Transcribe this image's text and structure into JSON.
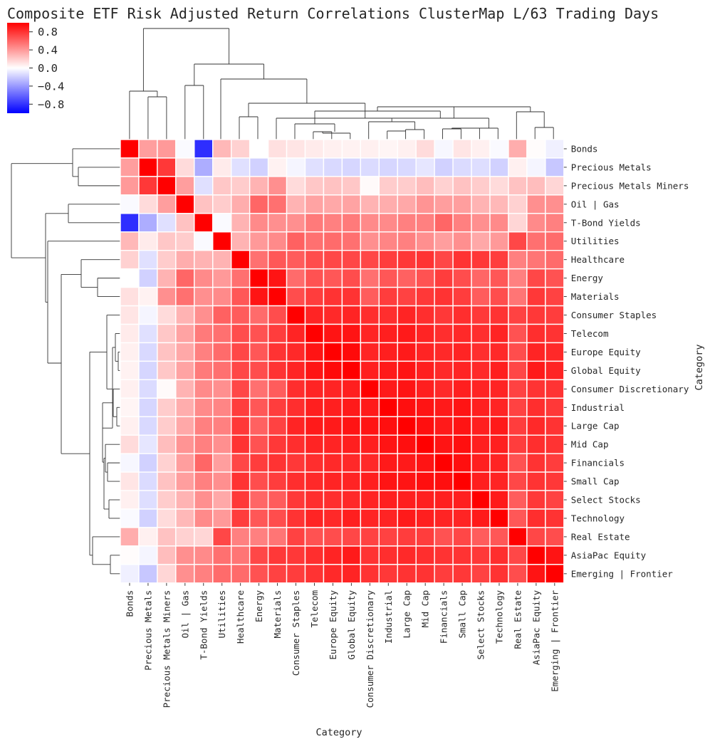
{
  "chart_data": {
    "type": "heatmap",
    "title": "Composite ETF Risk Adjusted Return Correlations ClusterMap L/63 Trading Days",
    "xlabel": "Category",
    "ylabel": "Category",
    "colormap": "bwr",
    "colors": {
      "negative": "#0000ff",
      "zero": "#ffffff",
      "positive": "#ff0000",
      "cell_border": "#ffffff"
    },
    "vmin": -1,
    "vmax": 1,
    "colorbar_ticks": [
      "0.8",
      "0.4",
      "0.0",
      "−0.4",
      "−0.8"
    ],
    "colorbar_tick_values": [
      0.8,
      0.4,
      0.0,
      -0.4,
      -0.8
    ],
    "categories": [
      "Bonds",
      "Precious Metals",
      "Precious Metals Miners",
      "Oil | Gas",
      "T-Bond Yields",
      "Utilities",
      "Healthcare",
      "Energy",
      "Materials",
      "Consumer Staples",
      "Telecom",
      "Europe Equity",
      "Global Equity",
      "Consumer Discretionary",
      "Industrial",
      "Large Cap",
      "Mid Cap",
      "Financials",
      "Small Cap",
      "Select Stocks",
      "Technology",
      "Real Estate",
      "AsiaPac Equity",
      "Emerging | Frontier"
    ],
    "matrix": [
      [
        1.0,
        0.38,
        0.4,
        -0.02,
        -0.82,
        0.28,
        0.18,
        0.0,
        0.12,
        0.1,
        0.08,
        0.06,
        0.05,
        0.06,
        0.04,
        0.06,
        0.14,
        -0.03,
        0.1,
        0.06,
        -0.02,
        0.32,
        0.01,
        -0.06
      ],
      [
        0.38,
        1.0,
        0.78,
        0.14,
        -0.32,
        0.08,
        -0.12,
        -0.18,
        0.05,
        -0.04,
        -0.12,
        -0.15,
        -0.16,
        -0.14,
        -0.16,
        -0.15,
        -0.1,
        -0.18,
        -0.14,
        -0.13,
        -0.18,
        0.06,
        -0.04,
        -0.22
      ],
      [
        0.4,
        0.78,
        1.0,
        0.38,
        -0.12,
        0.22,
        0.2,
        0.3,
        0.44,
        0.14,
        0.22,
        0.24,
        0.22,
        0.02,
        0.2,
        0.2,
        0.26,
        0.18,
        0.24,
        0.2,
        0.14,
        0.24,
        0.26,
        0.16
      ],
      [
        -0.02,
        0.14,
        0.38,
        1.0,
        0.24,
        0.2,
        0.32,
        0.6,
        0.56,
        0.3,
        0.36,
        0.34,
        0.36,
        0.3,
        0.32,
        0.34,
        0.42,
        0.38,
        0.38,
        0.3,
        0.28,
        0.18,
        0.44,
        0.44
      ],
      [
        -0.82,
        -0.32,
        -0.12,
        0.24,
        1.0,
        -0.02,
        0.3,
        0.46,
        0.44,
        0.44,
        0.52,
        0.5,
        0.52,
        0.46,
        0.46,
        0.5,
        0.5,
        0.6,
        0.5,
        0.44,
        0.46,
        0.16,
        0.46,
        0.5
      ],
      [
        0.28,
        0.08,
        0.22,
        0.2,
        -0.02,
        1.0,
        0.3,
        0.4,
        0.46,
        0.62,
        0.56,
        0.58,
        0.56,
        0.44,
        0.48,
        0.5,
        0.44,
        0.38,
        0.44,
        0.34,
        0.4,
        0.72,
        0.56,
        0.58
      ],
      [
        0.18,
        -0.12,
        0.2,
        0.32,
        0.3,
        0.3,
        1.0,
        0.56,
        0.66,
        0.64,
        0.7,
        0.72,
        0.72,
        0.72,
        0.76,
        0.78,
        0.8,
        0.72,
        0.8,
        0.78,
        0.76,
        0.5,
        0.54,
        0.58
      ],
      [
        0.0,
        -0.18,
        0.3,
        0.6,
        0.46,
        0.4,
        0.56,
        1.0,
        0.92,
        0.58,
        0.68,
        0.66,
        0.7,
        0.56,
        0.66,
        0.62,
        0.68,
        0.76,
        0.7,
        0.6,
        0.66,
        0.5,
        0.72,
        0.68
      ],
      [
        0.12,
        0.05,
        0.44,
        0.56,
        0.44,
        0.46,
        0.66,
        0.92,
        1.0,
        0.7,
        0.76,
        0.8,
        0.8,
        0.64,
        0.76,
        0.74,
        0.78,
        0.8,
        0.76,
        0.64,
        0.7,
        0.54,
        0.78,
        0.74
      ],
      [
        0.1,
        -0.04,
        0.14,
        0.3,
        0.44,
        0.62,
        0.64,
        0.58,
        0.7,
        1.0,
        0.86,
        0.84,
        0.86,
        0.82,
        0.82,
        0.86,
        0.82,
        0.78,
        0.82,
        0.78,
        0.8,
        0.74,
        0.78,
        0.76
      ],
      [
        0.08,
        -0.12,
        0.22,
        0.36,
        0.52,
        0.56,
        0.7,
        0.68,
        0.76,
        0.86,
        1.0,
        0.92,
        0.92,
        0.86,
        0.88,
        0.9,
        0.86,
        0.82,
        0.84,
        0.82,
        0.86,
        0.68,
        0.82,
        0.8
      ],
      [
        0.06,
        -0.15,
        0.24,
        0.34,
        0.5,
        0.58,
        0.72,
        0.66,
        0.8,
        0.84,
        0.92,
        1.0,
        0.96,
        0.86,
        0.88,
        0.9,
        0.86,
        0.84,
        0.86,
        0.82,
        0.84,
        0.7,
        0.86,
        0.84
      ],
      [
        0.05,
        -0.16,
        0.22,
        0.36,
        0.52,
        0.56,
        0.72,
        0.7,
        0.8,
        0.86,
        0.92,
        0.96,
        1.0,
        0.88,
        0.9,
        0.92,
        0.88,
        0.84,
        0.86,
        0.84,
        0.88,
        0.72,
        0.9,
        0.86
      ],
      [
        0.06,
        -0.14,
        0.02,
        0.3,
        0.46,
        0.44,
        0.72,
        0.56,
        0.64,
        0.82,
        0.86,
        0.86,
        0.88,
        1.0,
        0.9,
        0.92,
        0.88,
        0.84,
        0.88,
        0.86,
        0.86,
        0.74,
        0.8,
        0.8
      ],
      [
        0.04,
        -0.16,
        0.2,
        0.32,
        0.46,
        0.48,
        0.76,
        0.66,
        0.76,
        0.82,
        0.88,
        0.88,
        0.9,
        0.9,
        1.0,
        0.94,
        0.92,
        0.9,
        0.92,
        0.88,
        0.86,
        0.74,
        0.82,
        0.78
      ],
      [
        0.06,
        -0.15,
        0.2,
        0.34,
        0.5,
        0.5,
        0.78,
        0.62,
        0.74,
        0.86,
        0.9,
        0.9,
        0.92,
        0.92,
        0.94,
        1.0,
        0.94,
        0.9,
        0.92,
        0.88,
        0.9,
        0.76,
        0.84,
        0.8
      ],
      [
        0.14,
        -0.1,
        0.26,
        0.42,
        0.5,
        0.44,
        0.8,
        0.68,
        0.78,
        0.82,
        0.86,
        0.86,
        0.88,
        0.88,
        0.92,
        0.94,
        1.0,
        0.92,
        0.94,
        0.88,
        0.88,
        0.76,
        0.82,
        0.8
      ],
      [
        -0.03,
        -0.18,
        0.18,
        0.38,
        0.6,
        0.38,
        0.72,
        0.76,
        0.8,
        0.78,
        0.82,
        0.84,
        0.84,
        0.84,
        0.9,
        0.9,
        0.92,
        1.0,
        0.94,
        0.88,
        0.86,
        0.68,
        0.8,
        0.76
      ],
      [
        0.1,
        -0.14,
        0.24,
        0.38,
        0.5,
        0.44,
        0.8,
        0.7,
        0.76,
        0.82,
        0.84,
        0.86,
        0.86,
        0.88,
        0.92,
        0.92,
        0.94,
        0.94,
        1.0,
        0.88,
        0.86,
        0.72,
        0.8,
        0.78
      ],
      [
        0.06,
        -0.13,
        0.2,
        0.3,
        0.44,
        0.34,
        0.78,
        0.6,
        0.64,
        0.78,
        0.82,
        0.82,
        0.84,
        0.86,
        0.88,
        0.88,
        0.88,
        0.88,
        0.88,
        1.0,
        0.9,
        0.64,
        0.78,
        0.74
      ],
      [
        -0.02,
        -0.18,
        0.14,
        0.28,
        0.46,
        0.4,
        0.76,
        0.66,
        0.7,
        0.8,
        0.86,
        0.84,
        0.88,
        0.86,
        0.86,
        0.9,
        0.88,
        0.86,
        0.86,
        0.9,
        1.0,
        0.66,
        0.82,
        0.8
      ],
      [
        0.32,
        0.06,
        0.24,
        0.18,
        0.16,
        0.72,
        0.5,
        0.5,
        0.54,
        0.74,
        0.68,
        0.7,
        0.72,
        0.74,
        0.74,
        0.76,
        0.76,
        0.68,
        0.72,
        0.64,
        0.66,
        1.0,
        0.72,
        0.7
      ],
      [
        0.01,
        -0.04,
        0.26,
        0.44,
        0.46,
        0.56,
        0.54,
        0.72,
        0.78,
        0.78,
        0.82,
        0.86,
        0.9,
        0.8,
        0.82,
        0.84,
        0.82,
        0.8,
        0.8,
        0.78,
        0.82,
        0.72,
        1.0,
        0.92
      ],
      [
        -0.06,
        -0.22,
        0.16,
        0.44,
        0.5,
        0.58,
        0.58,
        0.68,
        0.74,
        0.76,
        0.8,
        0.84,
        0.86,
        0.8,
        0.78,
        0.8,
        0.8,
        0.76,
        0.78,
        0.74,
        0.8,
        0.7,
        0.92,
        1.0
      ]
    ]
  }
}
